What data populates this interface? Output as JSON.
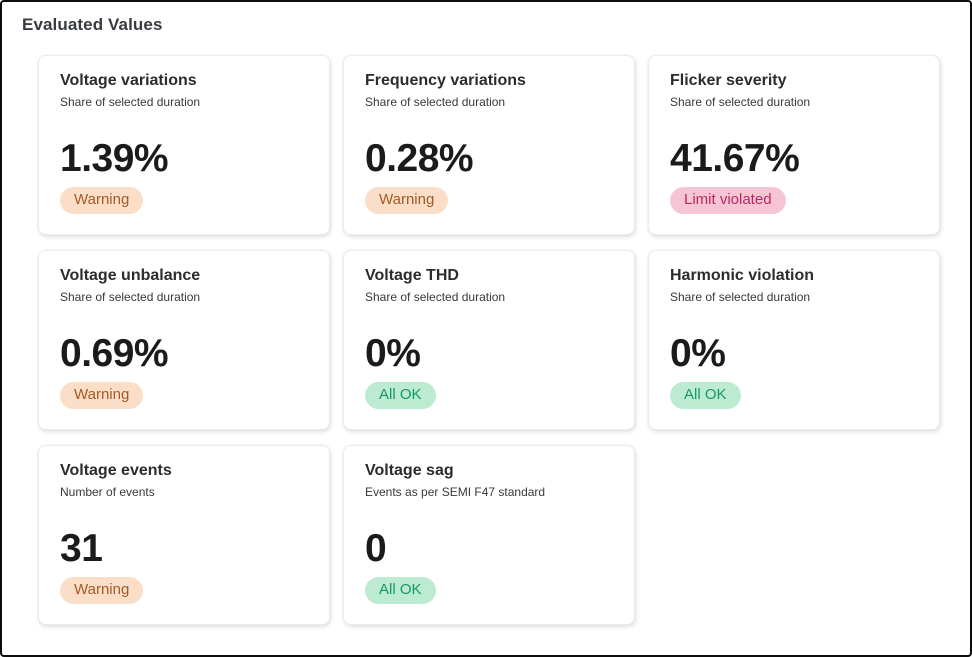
{
  "page": {
    "title": "Evaluated Values"
  },
  "status_colors": {
    "warning": {
      "bg": "#fadec7",
      "text": "#a45a26"
    },
    "violation": {
      "bg": "#f6c5d3",
      "text": "#bc2765"
    },
    "ok": {
      "bg": "#bcebd2",
      "text": "#14976b"
    }
  },
  "cards": [
    {
      "title": "Voltage variations",
      "subtitle": "Share of selected duration",
      "value": "1.39%",
      "status": "Warning",
      "status_type": "warning"
    },
    {
      "title": "Frequency variations",
      "subtitle": "Share of selected duration",
      "value": "0.28%",
      "status": "Warning",
      "status_type": "warning"
    },
    {
      "title": "Flicker severity",
      "subtitle": "Share of selected duration",
      "value": "41.67%",
      "status": "Limit violated",
      "status_type": "violation"
    },
    {
      "title": "Voltage unbalance",
      "subtitle": "Share of selected duration",
      "value": "0.69%",
      "status": "Warning",
      "status_type": "warning"
    },
    {
      "title": "Voltage THD",
      "subtitle": "Share of selected duration",
      "value": "0%",
      "status": "All OK",
      "status_type": "ok"
    },
    {
      "title": "Harmonic violation",
      "subtitle": "Share of selected duration",
      "value": "0%",
      "status": "All OK",
      "status_type": "ok"
    },
    {
      "title": "Voltage events",
      "subtitle": "Number of events",
      "value": "31",
      "status": "Warning",
      "status_type": "warning"
    },
    {
      "title": "Voltage sag",
      "subtitle": "Events as per SEMI F47 standard",
      "value": "0",
      "status": "All OK",
      "status_type": "ok"
    }
  ]
}
